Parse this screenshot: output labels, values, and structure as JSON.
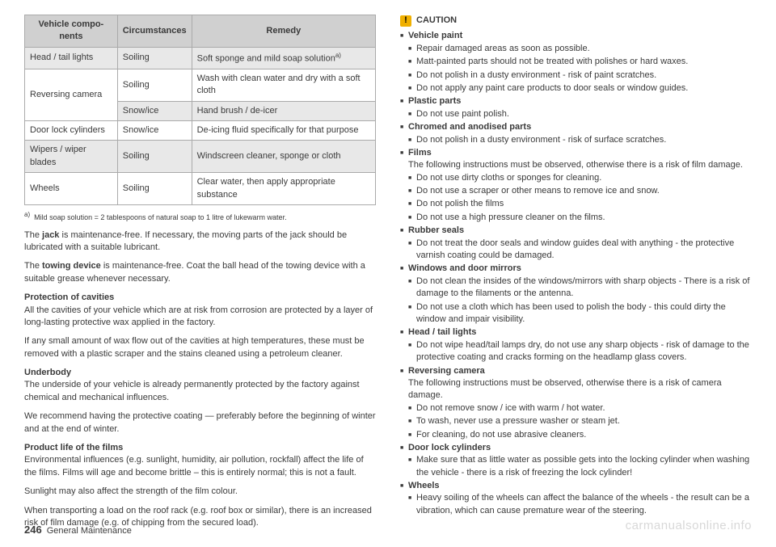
{
  "table": {
    "headers": [
      "Vehicle compo­nents",
      "Circumstances",
      "Remedy"
    ],
    "rows": [
      {
        "cells": [
          "Head / tail lights",
          "Soiling",
          "Soft sponge and mild soap solution"
        ],
        "bg": [
          true,
          true,
          true
        ],
        "supA": true
      },
      {
        "cells": [
          "Reversing camera",
          "Soiling",
          "Wash with clean water and dry with a soft cloth"
        ],
        "rowspan0": 2
      },
      {
        "cells": [
          "Snow/ice",
          "Hand brush / de-icer"
        ],
        "bg": [
          true,
          true
        ]
      },
      {
        "cells": [
          "Door lock cylin­ders",
          "Snow/ice",
          "De-icing fluid specifically for that pur­pose"
        ]
      },
      {
        "cells": [
          "Wipers / wiper blades",
          "Soiling",
          "Windscreen cleaner, sponge or cloth"
        ],
        "bg": [
          true,
          true,
          true
        ]
      },
      {
        "cells": [
          "Wheels",
          "Soiling",
          "Clear water, then apply appropriate substance"
        ]
      }
    ]
  },
  "footnote": "Mild soap solution = 2 tablespoons of natural soap to 1 litre of lukewarm water.",
  "para1a": "The ",
  "para1b": "jack",
  "para1c": " is maintenance-free. If necessary, the moving parts of the jack should be lubricated with a suitable lubricant.",
  "para2a": "The ",
  "para2b": "towing device",
  "para2c": " is maintenance-free. Coat the ball head of the towing de­vice with a suitable grease whenever necessary.",
  "h1": "Protection of cavities",
  "para3": "All the cavities of your vehicle which are at risk from corrosion are protected by a layer of long-lasting protective wax applied in the factory.",
  "para4": "If any small amount of wax flow out of the cavities at high temperatures, these must be removed with a plastic scraper and the stains cleaned using a petrole­um cleaner.",
  "h2": "Underbody",
  "para5": "The underside of your vehicle is already permanently protected by the factory against chemical and mechanical influences.",
  "para6": "We recommend having the protective coating — preferably before the begin­ning of winter and at the end of winter.",
  "h3": "Product life of the films",
  "para7": "Environmental influences (e.g. sunlight, humidity, air pollution, rockfall) affect the life of the films. Films will age and become brittle – this is entirely normal; this is not a fault.",
  "para8": "Sunlight may also affect the strength of the film colour.",
  "para9": "When transporting a load on the roof rack (e.g. roof box or similar), there is an increased risk of film damage (e.g. of chipping from the secured load).",
  "caution": "CAUTION",
  "c": {
    "vp": "Vehicle paint",
    "vp1": "Repair damaged areas as soon as possible.",
    "vp2": "Matt-painted parts should not be treated with polishes or hard waxes.",
    "vp3": "Do not polish in a dusty environment - risk of paint scratches.",
    "vp4": "Do not apply any paint care products to door seals or window guides.",
    "pp": "Plastic parts",
    "pp1": "Do not use paint polish.",
    "ca": "Chromed and anodised parts",
    "ca1": "Do not polish in a dusty environment - risk of surface scratches.",
    "fi": "Films",
    "fi0": "The following instructions must be observed, otherwise there is a risk of film damage.",
    "fi1": "Do not use dirty cloths or sponges for cleaning.",
    "fi2": "Do not use a scraper or other means to remove ice and snow.",
    "fi3": "Do not polish the films",
    "fi4": "Do not use a high pressure cleaner on the films.",
    "rs": "Rubber seals",
    "rs1": "Do not treat the door seals and window guides deal with anything - the protective varnish coating could be damaged.",
    "wm": "Windows and door mirrors",
    "wm1": "Do not clean the insides of the windows/mirrors with sharp objects - There is a risk of damage to the filaments or the antenna.",
    "wm2": "Do not use a cloth which has been used to polish the body - this could dirty the window and impair visibility.",
    "ht": "Head / tail lights",
    "ht1": "Do not wipe head/tail lamps dry, do not use any sharp objects - risk of dam­age to the protective coating and cracks forming on the headlamp glass cov­ers.",
    "rc": "Reversing camera",
    "rc0": "The following instructions must be observed, otherwise there is a risk of camera damage.",
    "rc1": "Do not remove snow / ice with warm / hot water.",
    "rc2": "To wash, never use a pressure washer or steam jet.",
    "rc3": "For cleaning, do not use abrasive cleaners.",
    "dl": "Door lock cylinders",
    "dl1": "Make sure that as little water as possible gets into the locking cylinder when washing the vehicle - there is a risk of freezing the lock cylinder!",
    "wh": "Wheels",
    "wh1": "Heavy soiling of the wheels can affect the balance of the wheels - the re­sult can be a vibration, which can cause premature wear of the steering."
  },
  "pageNum": "246",
  "pageTitle": "General Maintenance",
  "watermark": "carmanualsonline.info"
}
